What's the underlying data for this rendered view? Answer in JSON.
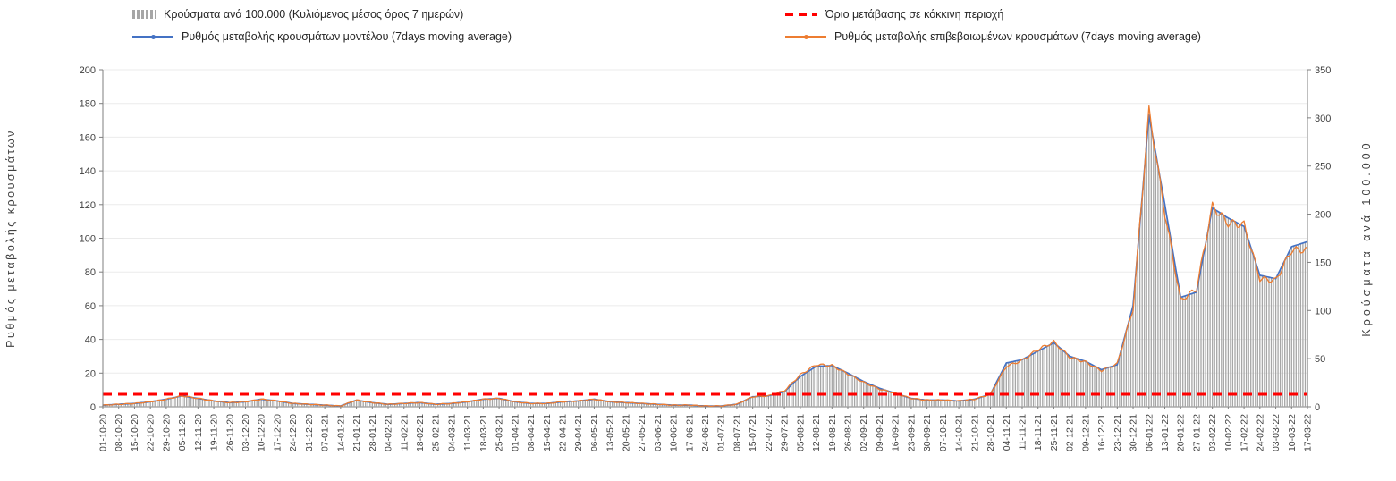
{
  "chart_data": {
    "type": "combo",
    "title": "",
    "legend_position": "top",
    "grid": true,
    "x_labels": [
      "01-10-20",
      "08-10-20",
      "15-10-20",
      "22-10-20",
      "29-10-20",
      "05-11-20",
      "12-11-20",
      "19-11-20",
      "26-11-20",
      "03-12-20",
      "10-12-20",
      "17-12-20",
      "24-12-20",
      "31-12-20",
      "07-01-21",
      "14-01-21",
      "21-01-21",
      "28-01-21",
      "04-02-21",
      "11-02-21",
      "18-02-21",
      "25-02-21",
      "04-03-21",
      "11-03-21",
      "18-03-21",
      "25-03-21",
      "01-04-21",
      "08-04-21",
      "15-04-21",
      "22-04-21",
      "29-04-21",
      "06-05-21",
      "13-05-21",
      "20-05-21",
      "27-05-21",
      "03-06-21",
      "10-06-21",
      "17-06-21",
      "24-06-21",
      "01-07-21",
      "08-07-21",
      "15-07-21",
      "22-07-21",
      "29-07-21",
      "05-08-21",
      "12-08-21",
      "19-08-21",
      "26-08-21",
      "02-09-21",
      "09-09-21",
      "16-09-21",
      "23-09-21",
      "30-09-21",
      "07-10-21",
      "14-10-21",
      "21-10-21",
      "28-10-21",
      "04-11-21",
      "11-11-21",
      "18-11-21",
      "25-11-21",
      "02-12-21",
      "09-12-21",
      "16-12-21",
      "23-12-21",
      "30-12-21",
      "06-01-22",
      "13-01-22",
      "20-01-22",
      "27-01-22",
      "03-02-22",
      "10-02-22",
      "17-02-22",
      "24-02-22",
      "03-03-22",
      "10-03-22",
      "17-03-22"
    ],
    "axes": {
      "left": {
        "label": "Ρυθμός μεταβολής κρουσμάτων",
        "min": 0,
        "max": 200,
        "step": 20
      },
      "right": {
        "label": "Κρούσματα ανά 100.000",
        "min": 0,
        "max": 350,
        "step": 50
      }
    },
    "series": [
      {
        "name": "Κρούσματα ανά 100.000 (Κυλιόμενος μέσος όρος 7 ημερών)",
        "type": "bar",
        "axis": "right",
        "color": "#a6a6a6",
        "values": [
          2,
          3,
          4,
          5,
          8,
          11,
          9,
          6,
          4,
          5,
          8,
          6,
          4,
          3,
          2,
          1,
          7,
          4,
          3,
          4,
          4,
          3,
          4,
          5,
          8,
          9,
          5,
          4,
          4,
          5,
          6,
          8,
          5,
          4,
          4,
          3,
          2,
          2,
          1,
          1,
          3,
          10,
          11,
          16,
          32,
          42,
          43,
          35,
          26,
          19,
          14,
          9,
          7,
          7,
          6,
          8,
          13,
          46,
          49,
          58,
          67,
          53,
          47,
          39,
          44,
          105,
          303,
          210,
          114,
          119,
          207,
          196,
          187,
          137,
          133,
          166,
          172
        ]
      },
      {
        "name": "Όριο μετάβασης σε κόκκινη περιοχή",
        "type": "threshold",
        "axis": "right",
        "color": "#ff0000",
        "style": "dashed",
        "value": 13
      },
      {
        "name": "Ρυθμός μεταβολής κρουσμάτων μοντέλου (7days moving average)",
        "type": "line",
        "axis": "left",
        "color": "#4472c4",
        "values": [
          1,
          1.5,
          2,
          3,
          4.5,
          6.5,
          5,
          3.5,
          2.5,
          3,
          4.5,
          3.5,
          2,
          1.5,
          1,
          0.5,
          4,
          2.5,
          1.5,
          2,
          2.5,
          1.5,
          2,
          3,
          4.5,
          5,
          3,
          2,
          2,
          3,
          3.5,
          4.5,
          3,
          2.5,
          2,
          1.5,
          1,
          1,
          0.5,
          0.5,
          1.5,
          6,
          6.5,
          9,
          18,
          24,
          24.5,
          20,
          15,
          11,
          8,
          5,
          4,
          4,
          3.5,
          4.5,
          7.5,
          26,
          28,
          33,
          38,
          30,
          27,
          22,
          25,
          60,
          173,
          120,
          65,
          68,
          118,
          112,
          107,
          78,
          76,
          95,
          98
        ]
      },
      {
        "name": "Ρυθμός μεταβολής επιβεβαιωμένων κρουσμάτων (7days moving average)",
        "type": "line",
        "axis": "left",
        "color": "#ed7d31",
        "values": [
          1,
          1.5,
          2,
          3,
          4.5,
          6.5,
          5,
          3.5,
          2.5,
          3,
          4.5,
          3.5,
          2,
          1.5,
          1,
          0.5,
          4,
          2.5,
          1.5,
          2,
          2.5,
          1.5,
          2,
          3,
          4.5,
          5,
          3,
          2,
          2,
          3,
          3.5,
          4.5,
          3,
          2.5,
          2,
          1.5,
          1,
          1,
          0.5,
          0.5,
          1.5,
          6,
          6.5,
          9.5,
          19,
          25,
          24.5,
          19.5,
          14.5,
          10.5,
          8,
          5,
          4,
          4,
          3.5,
          4.5,
          7.5,
          24,
          27.5,
          34,
          38.5,
          29.5,
          26.5,
          21.5,
          25.5,
          58,
          176,
          115,
          63,
          70,
          119,
          109,
          108,
          76,
          75,
          93,
          93
        ]
      }
    ]
  }
}
